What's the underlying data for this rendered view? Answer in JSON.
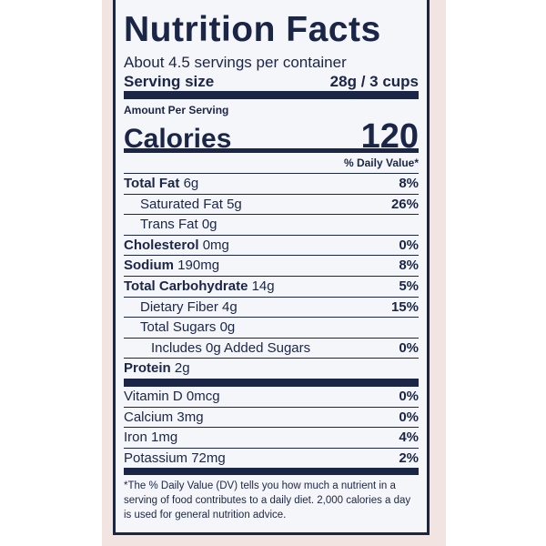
{
  "title": "Nutrition Facts",
  "servings": "About 4.5 servings per container",
  "serving_size": {
    "label": "Serving size",
    "value": "28g / 3 cups"
  },
  "amount_per_serving": "Amount Per Serving",
  "calories": {
    "label": "Calories",
    "value": "120"
  },
  "daily_value_header": "% Daily Value*",
  "nutrients": [
    {
      "name": "Total Fat",
      "amount": "6g",
      "dv": "8%"
    },
    {
      "name": "Saturated Fat",
      "amount": "5g",
      "dv": "26%"
    },
    {
      "name": "Trans Fat",
      "amount": "0g"
    },
    {
      "name": "Cholesterol",
      "amount": "0mg",
      "dv": "0%"
    },
    {
      "name": "Sodium",
      "amount": "190mg",
      "dv": "8%"
    },
    {
      "name": "Total Carbohydrate",
      "amount": "14g",
      "dv": "5%"
    },
    {
      "name": "Dietary Fiber",
      "amount": "4g",
      "dv": "15%"
    },
    {
      "name": "Total Sugars",
      "amount": "0g"
    },
    {
      "name": "Includes 0g Added Sugars",
      "dv": "0%"
    },
    {
      "name": "Protein",
      "amount": "2g"
    }
  ],
  "vitamins": [
    {
      "name": "Vitamin D",
      "amount": "0mcg",
      "dv": "0%"
    },
    {
      "name": "Calcium",
      "amount": "3mg",
      "dv": "0%"
    },
    {
      "name": "Iron",
      "amount": "1mg",
      "dv": "4%"
    },
    {
      "name": "Potassium",
      "amount": "72mg",
      "dv": "2%"
    }
  ],
  "footnote": "*The % Daily Value (DV) tells you how much a nutrient in a serving of food contributes to a daily diet. 2,000 calories a day is used for general nutrition advice."
}
